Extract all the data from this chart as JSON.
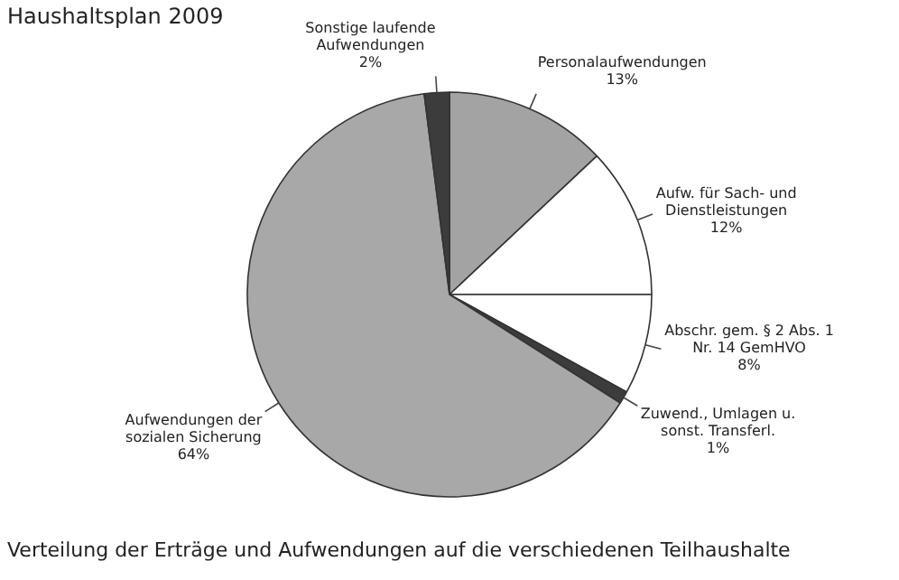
{
  "chart_data": {
    "type": "pie",
    "title": "Haushaltsplan 2009",
    "categories": [
      "Personalaufwendungen",
      "Aufw. für Sach- und Dienstleistungen",
      "Abschr. gem. § 2 Abs. 1 Nr. 14 GemHVO",
      "Zuwend., Umlagen u. sonst. Transferl.",
      "Aufwendungen der sozialen Sicherung",
      "Sonstige laufende Aufwendungen"
    ],
    "values": [
      13,
      12,
      8,
      1,
      64,
      2
    ],
    "value_labels": [
      "13%",
      "12%",
      "8%",
      "1%",
      "64%",
      "2%"
    ],
    "colors": [
      "#a3a3a3",
      "#ffffff",
      "#ffffff",
      "#3c3c3c",
      "#a8a8a8",
      "#3c3c3c"
    ],
    "annotations": [
      "Verteilung der Erträge und Aufwendungen auf die verschiedenen Teilhaushalte"
    ],
    "legend": false
  }
}
